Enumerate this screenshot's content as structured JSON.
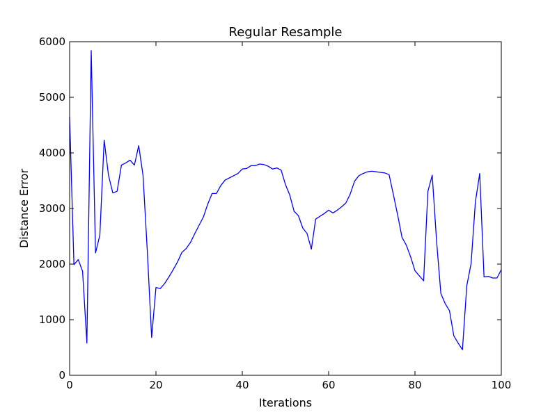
{
  "chart_data": {
    "type": "line",
    "title": "Regular Resample",
    "xlabel": "Iterations",
    "ylabel": "Distance Error",
    "xlim": [
      0,
      100
    ],
    "ylim": [
      0,
      6000
    ],
    "xticks": [
      0,
      20,
      40,
      60,
      80,
      100
    ],
    "yticks": [
      0,
      1000,
      2000,
      3000,
      4000,
      5000,
      6000
    ],
    "grid": false,
    "line_color": "#0000ff",
    "series": [
      {
        "x": [
          0,
          1,
          2,
          3,
          4,
          5,
          6,
          7,
          8,
          9,
          10,
          11,
          12,
          13,
          14,
          15,
          16,
          17,
          18,
          19,
          20,
          21,
          22,
          23,
          24,
          25,
          26,
          27,
          28,
          29,
          30,
          31,
          32,
          33,
          34,
          35,
          36,
          37,
          38,
          39,
          40,
          41,
          42,
          43,
          44,
          45,
          46,
          47,
          48,
          49,
          50,
          51,
          52,
          53,
          54,
          55,
          56,
          57,
          58,
          59,
          60,
          61,
          62,
          63,
          64,
          65,
          66,
          67,
          68,
          69,
          70,
          71,
          72,
          73,
          74,
          75,
          76,
          77,
          78,
          79,
          80,
          81,
          82,
          83,
          84,
          85,
          86,
          87,
          88,
          89,
          90,
          91,
          92,
          93,
          94,
          95,
          96,
          97,
          98,
          99,
          100
        ],
        "y": [
          4650,
          1990,
          2080,
          1870,
          580,
          5840,
          2200,
          2520,
          4230,
          3600,
          3280,
          3310,
          3780,
          3820,
          3870,
          3780,
          4130,
          3600,
          2230,
          680,
          1580,
          1560,
          1650,
          1770,
          1900,
          2040,
          2210,
          2280,
          2390,
          2550,
          2700,
          2850,
          3080,
          3270,
          3270,
          3410,
          3510,
          3550,
          3590,
          3630,
          3710,
          3720,
          3770,
          3770,
          3800,
          3790,
          3760,
          3710,
          3730,
          3690,
          3430,
          3240,
          2950,
          2870,
          2650,
          2550,
          2270,
          2810,
          2860,
          2910,
          2970,
          2920,
          2970,
          3030,
          3100,
          3260,
          3490,
          3590,
          3630,
          3660,
          3670,
          3660,
          3650,
          3640,
          3610,
          3250,
          2880,
          2480,
          2340,
          2130,
          1880,
          1790,
          1700,
          3310,
          3600,
          2420,
          1470,
          1290,
          1160,
          710,
          580,
          460,
          1610,
          2010,
          3120,
          3630,
          1770,
          1780,
          1750,
          1750,
          1900
        ]
      }
    ]
  }
}
